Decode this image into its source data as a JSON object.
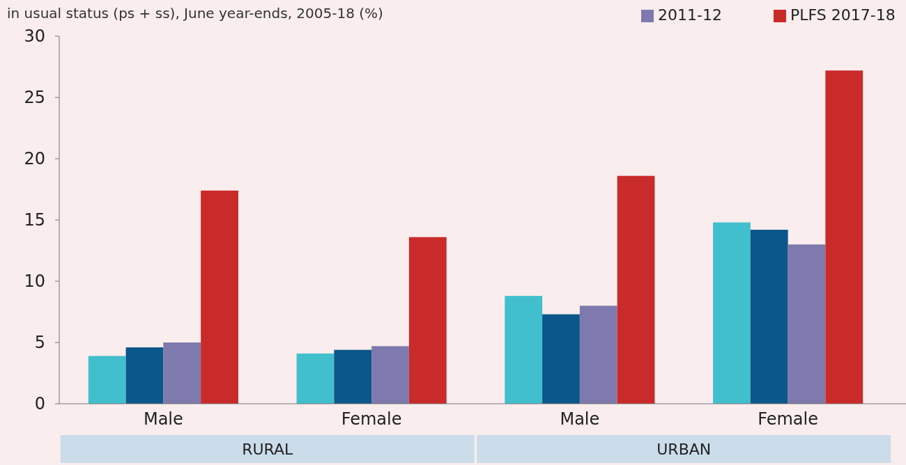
{
  "chart_data": {
    "type": "bar",
    "subtitle": "in usual status (ps + ss), June year-ends, 2005-18 (%)",
    "categories": [
      "Male",
      "Female",
      "Male",
      "Female"
    ],
    "series": [
      {
        "color": "#41bfcd",
        "values": [
          3.9,
          4.1,
          8.8,
          14.8
        ]
      },
      {
        "color": "#0b568a",
        "values": [
          4.6,
          4.4,
          7.3,
          14.2
        ]
      },
      {
        "name": "2011-12",
        "color": "#7f7aad",
        "values": [
          5.0,
          4.7,
          8.0,
          13.0
        ]
      },
      {
        "name": "PLFS 2017-18",
        "color": "#c92a2a",
        "values": [
          17.4,
          13.6,
          18.6,
          27.2
        ]
      }
    ],
    "ylim": [
      0,
      30
    ],
    "yticks": [
      0,
      5,
      10,
      15,
      20,
      25,
      30
    ],
    "legend": "top right",
    "annotations": [
      "RURAL",
      "URBAN"
    ]
  }
}
